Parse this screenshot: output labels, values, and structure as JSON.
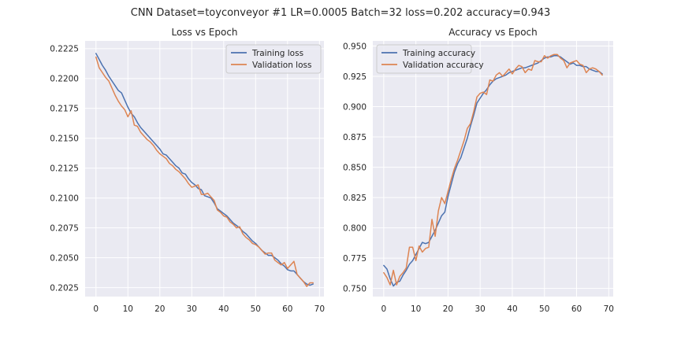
{
  "suptitle": "CNN Dataset=toyconveyor #1 LR=0.0005 Batch=32 loss=0.202 accuracy=0.943",
  "colors": {
    "training": "#4c72b0",
    "validation": "#dd8452",
    "plot_bg": "#eaeaf2",
    "grid": "#ffffff"
  },
  "chart_data": [
    {
      "type": "line",
      "title": "Loss vs Epoch",
      "xlabel": "",
      "ylabel": "",
      "xlim": [
        -3.4,
        71.4
      ],
      "ylim": [
        0.20175,
        0.22315
      ],
      "xticks": [
        "0",
        "10",
        "20",
        "30",
        "40",
        "50",
        "60",
        "70"
      ],
      "yticks": [
        "0.2025",
        "0.2050",
        "0.2075",
        "0.2100",
        "0.2125",
        "0.2150",
        "0.2175",
        "0.2200",
        "0.2225"
      ],
      "grid": true,
      "legend": "top-right",
      "series": [
        {
          "name": "Training loss",
          "x": [
            0,
            1,
            2,
            3,
            4,
            5,
            6,
            7,
            8,
            9,
            10,
            11,
            12,
            13,
            14,
            15,
            16,
            17,
            18,
            19,
            20,
            21,
            22,
            23,
            24,
            25,
            26,
            27,
            28,
            29,
            30,
            31,
            32,
            33,
            34,
            35,
            36,
            37,
            38,
            39,
            40,
            41,
            42,
            43,
            44,
            45,
            46,
            47,
            48,
            49,
            50,
            51,
            52,
            53,
            54,
            55,
            56,
            57,
            58,
            59,
            60,
            61,
            62,
            63,
            64,
            65,
            66,
            67,
            68
          ],
          "y": [
            0.2221,
            0.2216,
            0.2211,
            0.2207,
            0.2202,
            0.2198,
            0.2194,
            0.219,
            0.2188,
            0.2182,
            0.2176,
            0.2171,
            0.2168,
            0.2163,
            0.2159,
            0.2156,
            0.2153,
            0.215,
            0.2147,
            0.2144,
            0.2141,
            0.2137,
            0.2136,
            0.2133,
            0.213,
            0.2127,
            0.2125,
            0.2121,
            0.212,
            0.2116,
            0.2113,
            0.2111,
            0.2108,
            0.2107,
            0.2102,
            0.2101,
            0.21,
            0.2096,
            0.2091,
            0.2089,
            0.2087,
            0.2085,
            0.2082,
            0.2079,
            0.2077,
            0.2075,
            0.2072,
            0.207,
            0.2067,
            0.2064,
            0.2062,
            0.2059,
            0.2056,
            0.2054,
            0.2052,
            0.2052,
            0.205,
            0.2048,
            0.2045,
            0.2043,
            0.204,
            0.2039,
            0.2039,
            0.2036,
            0.2033,
            0.203,
            0.2028,
            0.2027,
            0.2028
          ]
        },
        {
          "name": "Validation loss",
          "x": [
            0,
            1,
            2,
            3,
            4,
            5,
            6,
            7,
            8,
            9,
            10,
            11,
            12,
            13,
            14,
            15,
            16,
            17,
            18,
            19,
            20,
            21,
            22,
            23,
            24,
            25,
            26,
            27,
            28,
            29,
            30,
            31,
            32,
            33,
            34,
            35,
            36,
            37,
            38,
            39,
            40,
            41,
            42,
            43,
            44,
            45,
            46,
            47,
            48,
            49,
            50,
            51,
            52,
            53,
            54,
            55,
            56,
            57,
            58,
            59,
            60,
            61,
            62,
            63,
            64,
            65,
            66,
            67,
            68
          ],
          "y": [
            0.2218,
            0.2209,
            0.2205,
            0.2201,
            0.2198,
            0.2192,
            0.2186,
            0.2181,
            0.2177,
            0.2174,
            0.2168,
            0.2173,
            0.2161,
            0.216,
            0.2155,
            0.2152,
            0.2149,
            0.2147,
            0.2144,
            0.214,
            0.2137,
            0.2135,
            0.2133,
            0.2129,
            0.2127,
            0.2124,
            0.2122,
            0.2119,
            0.2116,
            0.2112,
            0.2109,
            0.211,
            0.2111,
            0.2103,
            0.2103,
            0.2104,
            0.2101,
            0.2098,
            0.209,
            0.2088,
            0.2085,
            0.2084,
            0.208,
            0.2078,
            0.2075,
            0.2076,
            0.207,
            0.2067,
            0.2065,
            0.2062,
            0.2061,
            0.2059,
            0.2056,
            0.2053,
            0.2054,
            0.2054,
            0.2048,
            0.2046,
            0.2044,
            0.2046,
            0.2041,
            0.2044,
            0.2047,
            0.2036,
            0.2033,
            0.203,
            0.2026,
            0.2029,
            0.2029
          ]
        }
      ]
    },
    {
      "type": "line",
      "title": "Accuracy vs Epoch",
      "xlabel": "",
      "ylabel": "",
      "xlim": [
        -3.4,
        71.4
      ],
      "ylim": [
        0.7433,
        0.9542
      ],
      "xticks": [
        "0",
        "10",
        "20",
        "30",
        "40",
        "50",
        "60",
        "70"
      ],
      "yticks": [
        "0.750",
        "0.775",
        "0.800",
        "0.825",
        "0.850",
        "0.875",
        "0.900",
        "0.925",
        "0.950"
      ],
      "grid": true,
      "legend": "top-left",
      "series": [
        {
          "name": "Training accuracy",
          "x": [
            0,
            1,
            2,
            3,
            4,
            5,
            6,
            7,
            8,
            9,
            10,
            11,
            12,
            13,
            14,
            15,
            16,
            17,
            18,
            19,
            20,
            21,
            22,
            23,
            24,
            25,
            26,
            27,
            28,
            29,
            30,
            31,
            32,
            33,
            34,
            35,
            36,
            37,
            38,
            39,
            40,
            41,
            42,
            43,
            44,
            45,
            46,
            47,
            48,
            49,
            50,
            51,
            52,
            53,
            54,
            55,
            56,
            57,
            58,
            59,
            60,
            61,
            62,
            63,
            64,
            65,
            66,
            67,
            68
          ],
          "y": [
            0.769,
            0.766,
            0.758,
            0.752,
            0.755,
            0.756,
            0.761,
            0.765,
            0.77,
            0.773,
            0.778,
            0.783,
            0.788,
            0.787,
            0.788,
            0.793,
            0.798,
            0.804,
            0.81,
            0.813,
            0.826,
            0.836,
            0.846,
            0.853,
            0.858,
            0.866,
            0.874,
            0.884,
            0.893,
            0.903,
            0.907,
            0.911,
            0.914,
            0.918,
            0.921,
            0.923,
            0.924,
            0.925,
            0.926,
            0.928,
            0.929,
            0.93,
            0.931,
            0.932,
            0.932,
            0.933,
            0.934,
            0.935,
            0.936,
            0.938,
            0.94,
            0.941,
            0.941,
            0.942,
            0.942,
            0.941,
            0.939,
            0.937,
            0.935,
            0.936,
            0.934,
            0.934,
            0.933,
            0.933,
            0.931,
            0.93,
            0.929,
            0.929,
            0.927
          ]
        },
        {
          "name": "Validation accuracy",
          "x": [
            0,
            1,
            2,
            3,
            4,
            5,
            6,
            7,
            8,
            9,
            10,
            11,
            12,
            13,
            14,
            15,
            16,
            17,
            18,
            19,
            20,
            21,
            22,
            23,
            24,
            25,
            26,
            27,
            28,
            29,
            30,
            31,
            32,
            33,
            34,
            35,
            36,
            37,
            38,
            39,
            40,
            41,
            42,
            43,
            44,
            45,
            46,
            47,
            48,
            49,
            50,
            51,
            52,
            53,
            54,
            55,
            56,
            57,
            58,
            59,
            60,
            61,
            62,
            63,
            64,
            65,
            66,
            67,
            68
          ],
          "y": [
            0.763,
            0.759,
            0.753,
            0.765,
            0.753,
            0.76,
            0.763,
            0.767,
            0.784,
            0.784,
            0.773,
            0.785,
            0.78,
            0.783,
            0.784,
            0.807,
            0.793,
            0.814,
            0.825,
            0.82,
            0.83,
            0.84,
            0.849,
            0.856,
            0.864,
            0.872,
            0.882,
            0.886,
            0.896,
            0.908,
            0.911,
            0.912,
            0.91,
            0.922,
            0.921,
            0.926,
            0.928,
            0.925,
            0.928,
            0.931,
            0.927,
            0.931,
            0.934,
            0.933,
            0.928,
            0.931,
            0.93,
            0.938,
            0.937,
            0.937,
            0.942,
            0.94,
            0.942,
            0.943,
            0.943,
            0.94,
            0.938,
            0.932,
            0.936,
            0.937,
            0.938,
            0.935,
            0.934,
            0.928,
            0.931,
            0.932,
            0.931,
            0.929,
            0.926
          ]
        }
      ]
    }
  ]
}
